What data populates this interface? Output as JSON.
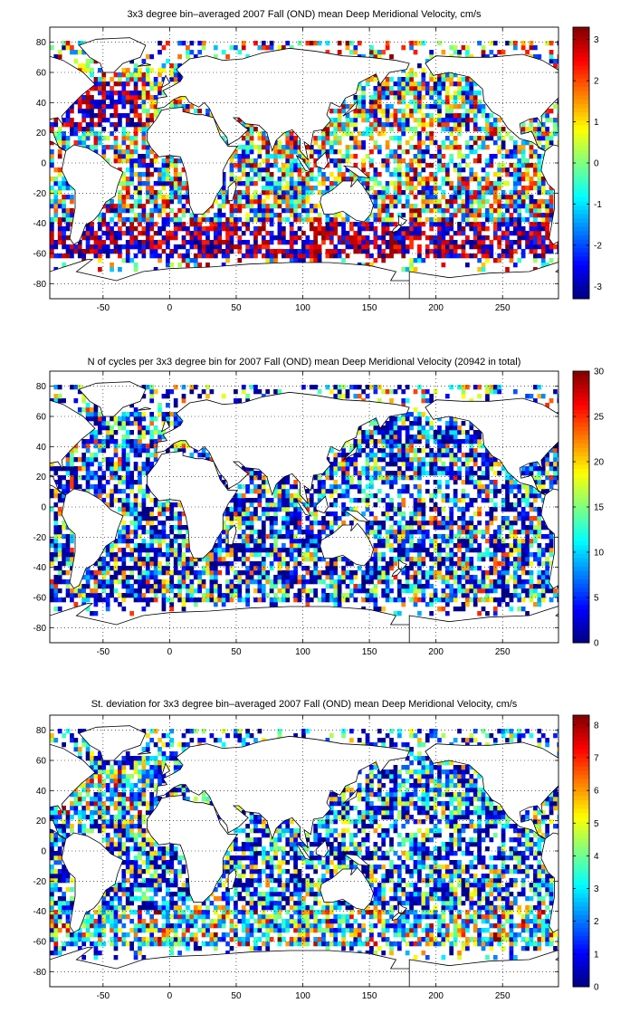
{
  "colormap": "jet",
  "land_color": "#ffffff",
  "panels": [
    {
      "title": "3x3 degree bin–averaged 2007 Fall (OND) mean Deep Meridional Velocity, cm/s",
      "chart_data": {
        "type": "heatmap",
        "title": "3x3 degree bin–averaged 2007 Fall (OND) mean Deep Meridional Velocity, cm/s",
        "xlabel": "",
        "ylabel": "",
        "xlim": [
          -90,
          292
        ],
        "ylim": [
          -90,
          90
        ],
        "xticks": [
          -50,
          0,
          50,
          100,
          150,
          200,
          250
        ],
        "yticks": [
          80,
          60,
          40,
          20,
          0,
          -20,
          -40,
          -60,
          -80
        ],
        "grid": true,
        "bin_size_deg": 3,
        "colorbar": {
          "min": -3.3,
          "max": 3.3,
          "ticks": [
            3,
            2,
            1,
            0,
            -1,
            -2,
            -3
          ]
        }
      }
    },
    {
      "title": "N of cycles per 3x3 degree bin for 2007 Fall (OND) mean Deep Meridional Velocity (20942 in total)",
      "chart_data": {
        "type": "heatmap",
        "title": "N of cycles per 3x3 degree bin for 2007 Fall (OND) mean Deep Meridional Velocity (20942 in total)",
        "xlabel": "",
        "ylabel": "",
        "xlim": [
          -90,
          292
        ],
        "ylim": [
          -90,
          90
        ],
        "xticks": [
          -50,
          0,
          50,
          100,
          150,
          200,
          250
        ],
        "yticks": [
          80,
          60,
          40,
          20,
          0,
          -20,
          -40,
          -60,
          -80
        ],
        "grid": true,
        "bin_size_deg": 3,
        "total_cycles": 20942,
        "colorbar": {
          "min": 0,
          "max": 30,
          "ticks": [
            30,
            25,
            20,
            15,
            10,
            5,
            0
          ]
        }
      }
    },
    {
      "title": "St. deviation for 3x3 degree bin–averaged 2007 Fall (OND) mean Deep Meridional Velocity, cm/s",
      "chart_data": {
        "type": "heatmap",
        "title": "St. deviation for 3x3 degree bin–averaged 2007 Fall (OND) mean Deep Meridional Velocity, cm/s",
        "xlabel": "",
        "ylabel": "",
        "xlim": [
          -90,
          292
        ],
        "ylim": [
          -90,
          90
        ],
        "xticks": [
          -50,
          0,
          50,
          100,
          150,
          200,
          250
        ],
        "yticks": [
          80,
          60,
          40,
          20,
          0,
          -20,
          -40,
          -60,
          -80
        ],
        "grid": true,
        "bin_size_deg": 3,
        "colorbar": {
          "min": 0,
          "max": 8.3,
          "ticks": [
            8,
            7,
            6,
            5,
            4,
            3,
            2,
            1,
            0
          ]
        }
      }
    }
  ]
}
